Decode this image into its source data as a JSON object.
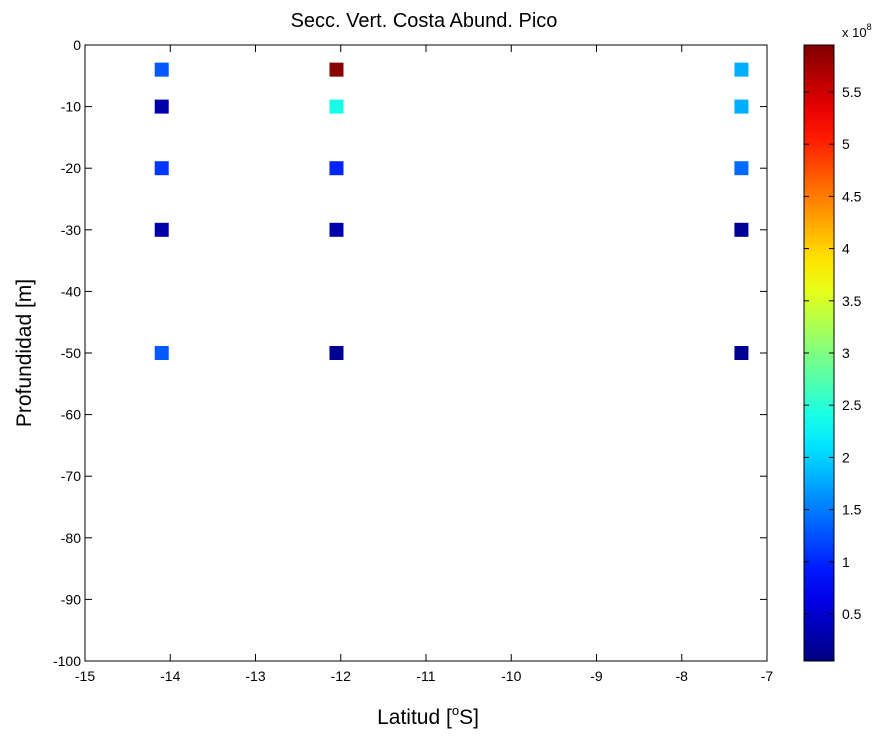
{
  "chart_data": {
    "type": "scatter",
    "title": "Secc. Vert. Costa Abund. Pico",
    "xlabel": "Latitud [",
    "xlabel_sup": "o",
    "xlabel_end": "S]",
    "ylabel": "Profundidad [m]",
    "xlim": [
      -15,
      -7
    ],
    "ylim": [
      -100,
      0
    ],
    "xticks": [
      -15,
      -14,
      -13,
      -12,
      -11,
      -10,
      -9,
      -8,
      -7
    ],
    "yticks": [
      0,
      -10,
      -20,
      -30,
      -40,
      -50,
      -60,
      -70,
      -80,
      -90,
      -100
    ],
    "grid": false,
    "marker": "square",
    "colormap": "jet",
    "colorbar": {
      "min": 0.05,
      "max": 5.95,
      "ticks": [
        0.5,
        1,
        1.5,
        2,
        2.5,
        3,
        3.5,
        4,
        4.5,
        5,
        5.5
      ],
      "tick_labels": [
        "0.5",
        "1",
        "1.5",
        "2",
        "2.5",
        "3",
        "3.5",
        "4",
        "4.5",
        "5",
        "5.5"
      ],
      "multiplier_prefix": "x 10",
      "multiplier_exponent": "8"
    },
    "points": [
      {
        "x": -14.1,
        "y": -4,
        "value": 1.3
      },
      {
        "x": -14.1,
        "y": -10,
        "value": 0.3
      },
      {
        "x": -14.1,
        "y": -20,
        "value": 1.1
      },
      {
        "x": -14.1,
        "y": -30,
        "value": 0.3
      },
      {
        "x": -14.1,
        "y": -50,
        "value": 1.3
      },
      {
        "x": -12.05,
        "y": -4,
        "value": 5.9
      },
      {
        "x": -12.05,
        "y": -10,
        "value": 2.4
      },
      {
        "x": -12.05,
        "y": -20,
        "value": 1.0
      },
      {
        "x": -12.05,
        "y": -30,
        "value": 0.3
      },
      {
        "x": -12.05,
        "y": -50,
        "value": 0.15
      },
      {
        "x": -7.3,
        "y": -4,
        "value": 1.8
      },
      {
        "x": -7.3,
        "y": -10,
        "value": 1.8
      },
      {
        "x": -7.3,
        "y": -20,
        "value": 1.4
      },
      {
        "x": -7.3,
        "y": -30,
        "value": 0.2
      },
      {
        "x": -7.3,
        "y": -50,
        "value": 0.15
      }
    ]
  }
}
